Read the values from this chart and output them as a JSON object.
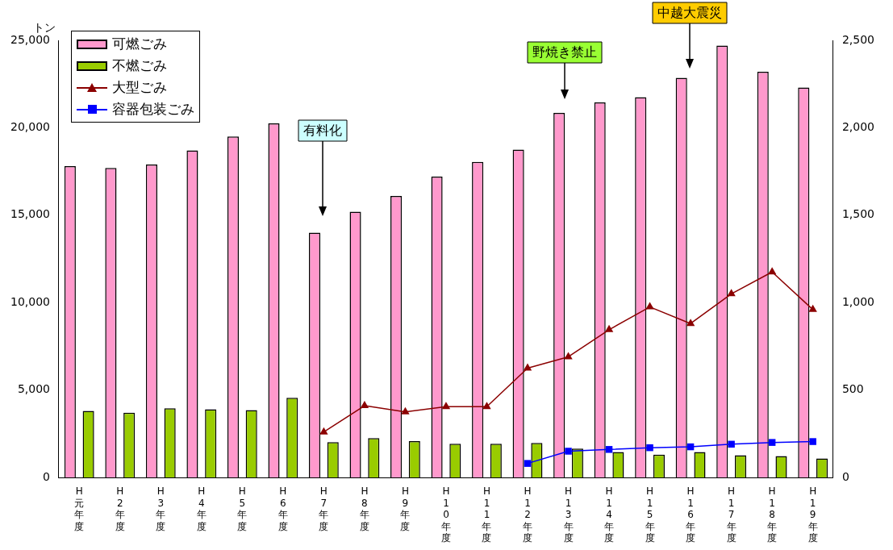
{
  "chart_data": {
    "type": "bar",
    "ylabel": "トン",
    "categories": [
      "H元年度",
      "H2年度",
      "H3年度",
      "H4年度",
      "H5年度",
      "H6年度",
      "H7年度",
      "H8年度",
      "H9年度",
      "H10年度",
      "H11年度",
      "H12年度",
      "H13年度",
      "H14年度",
      "H15年度",
      "H16年度",
      "H17年度",
      "H18年度",
      "H19年度"
    ],
    "series": [
      {
        "name": "可燃ごみ",
        "color": "#ff99cc",
        "values": [
          17800,
          17700,
          17900,
          18700,
          19500,
          20250,
          14000,
          15200,
          16100,
          17200,
          18050,
          18750,
          20850,
          21450,
          21750,
          22850,
          24700,
          23200,
          22300
        ]
      },
      {
        "name": "不燃ごみ",
        "color": "#99cc00",
        "values": [
          3800,
          3700,
          3950,
          3900,
          3850,
          4550,
          2020,
          2250,
          2070,
          1930,
          1930,
          1970,
          1650,
          1450,
          1300,
          1450,
          1270,
          1220,
          1080
        ]
      },
      {
        "name": "大型ごみ",
        "type": "line",
        "axis": "y2",
        "marker": "triangle",
        "color": "#8b0000",
        "values": [
          null,
          null,
          null,
          null,
          null,
          null,
          260,
          410,
          375,
          405,
          405,
          625,
          690,
          845,
          975,
          880,
          1050,
          1175,
          960
        ]
      },
      {
        "name": "容器包装ごみ",
        "type": "line",
        "axis": "y2",
        "marker": "square",
        "color": "#0000ff",
        "values": [
          null,
          null,
          null,
          null,
          null,
          null,
          null,
          null,
          null,
          null,
          null,
          80,
          150,
          160,
          170,
          175,
          190,
          200,
          205
        ]
      }
    ],
    "ylim": [
      0,
      25000
    ],
    "yticks": [
      0,
      {
        "value": 5000,
        "label": "5,000"
      },
      {
        "value": 10000,
        "label": "10,000"
      },
      {
        "value": 15000,
        "label": "15,000"
      },
      {
        "value": 20000,
        "label": "20,000"
      },
      {
        "value": 25000,
        "label": "25,000"
      }
    ],
    "y2lim": [
      0,
      2500
    ],
    "y2ticks": [
      0,
      500,
      {
        "value": 1000,
        "label": "1,000"
      },
      {
        "value": 1500,
        "label": "1,500"
      },
      {
        "value": 2000,
        "label": "2,000"
      },
      {
        "value": 2500,
        "label": "2,500"
      }
    ],
    "grid": false,
    "legend": "top left",
    "annotations": [
      "有料化",
      "野焼き禁止",
      "中越大震災"
    ]
  }
}
